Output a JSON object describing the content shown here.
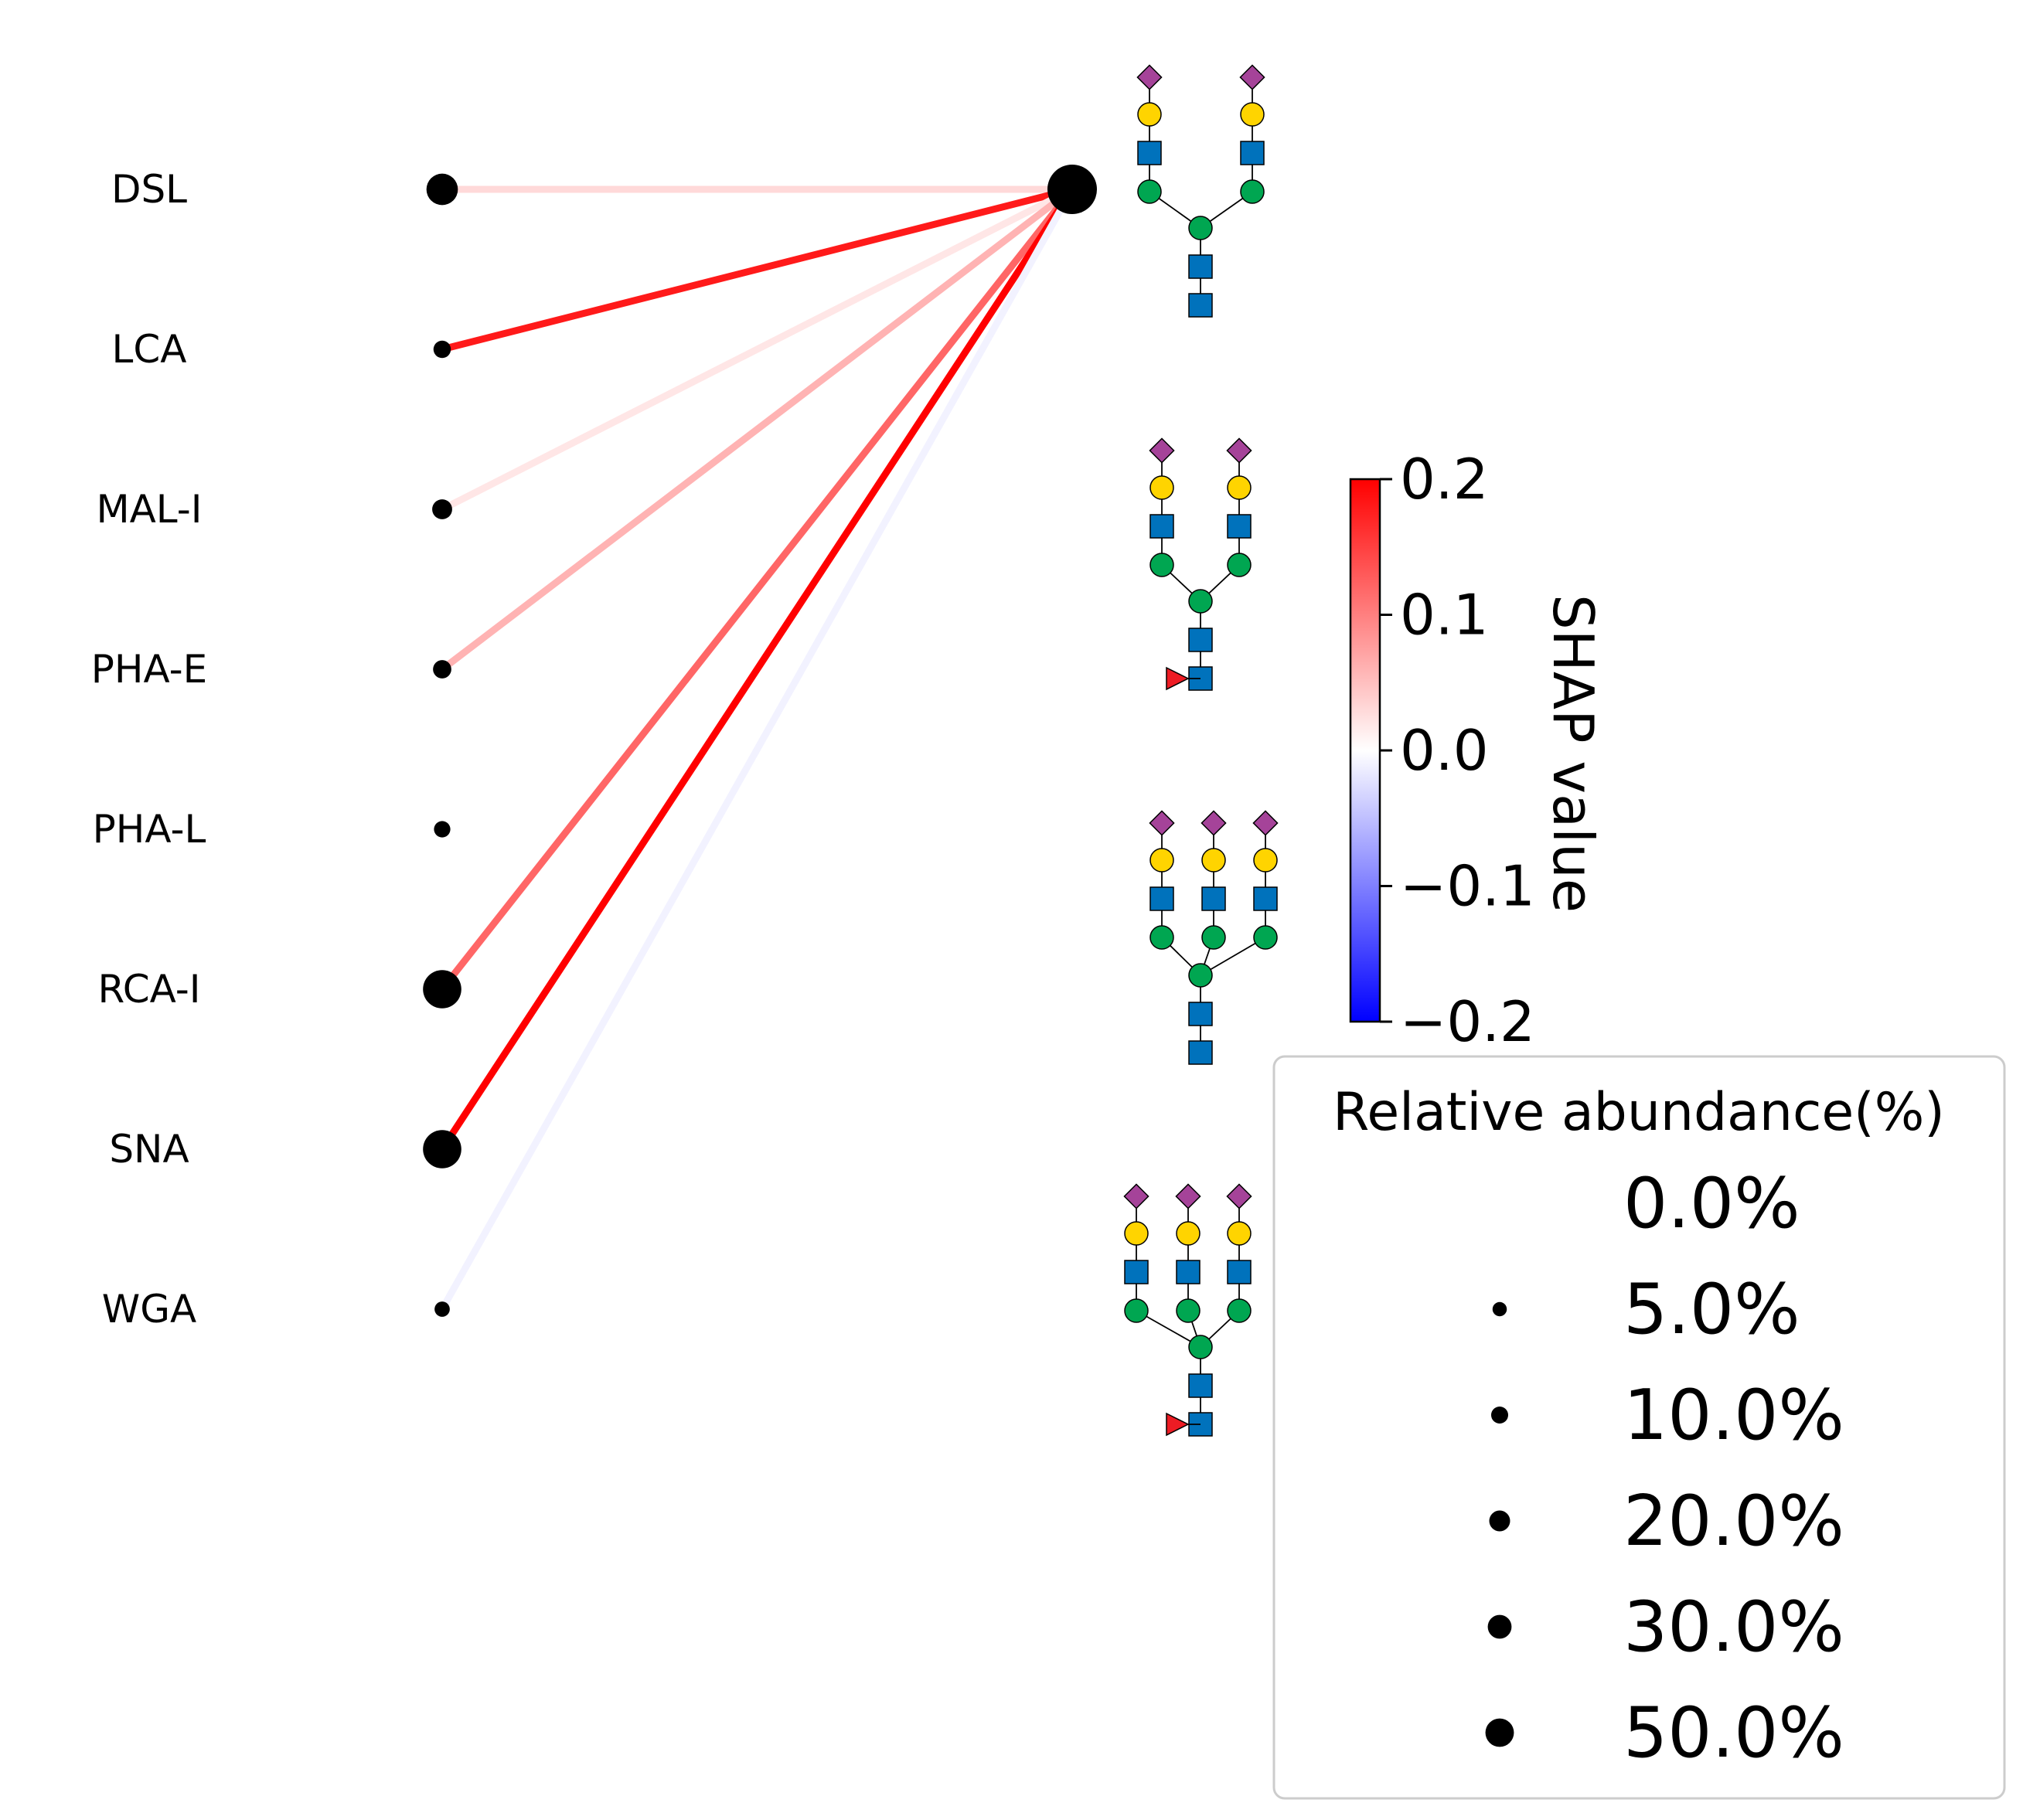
{
  "chart_data": {
    "type": "network",
    "lectins": [
      {
        "name": "DSL",
        "abundance": 30,
        "shap": 0.03
      },
      {
        "name": "LCA",
        "abundance": 5,
        "shap": 0.18
      },
      {
        "name": "MAL-I",
        "abundance": 8,
        "shap": 0.02
      },
      {
        "name": "PHA-E",
        "abundance": 6,
        "shap": 0.06
      },
      {
        "name": "PHA-L",
        "abundance": 4,
        "shap": null
      },
      {
        "name": "RCA-I",
        "abundance": 50,
        "shap": 0.12
      },
      {
        "name": "SNA",
        "abundance": 50,
        "shap": 0.2
      },
      {
        "name": "WGA",
        "abundance": 3,
        "shap": -0.01
      }
    ],
    "glycan_node": {
      "abundance": 100
    },
    "colorbar": {
      "label": "SHAP value",
      "ticks": [
        "0.2",
        "0.1",
        "0.0",
        "−0.1",
        "−0.2"
      ],
      "range": [
        -0.2,
        0.2
      ],
      "colors": {
        "high": "#ff0000",
        "mid": "#ffffff",
        "low": "#0000ff"
      }
    },
    "legend": {
      "title": "Relative abundance(%)",
      "entries": [
        "0.0%",
        "5.0%",
        "10.0%",
        "20.0%",
        "30.0%",
        "50.0%"
      ],
      "values": [
        0,
        5,
        10,
        20,
        30,
        50
      ]
    }
  }
}
